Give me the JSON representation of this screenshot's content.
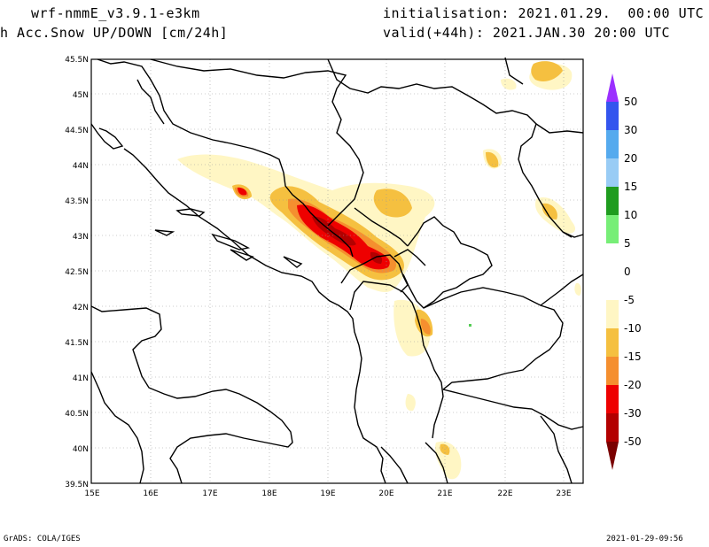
{
  "header": {
    "model": "wrf-nmmE_v3.9.1-e3km",
    "field": "h Acc.Snow UP/DOWN [cm/24h]",
    "init": "initialisation: 2021.01.29.  00:00 UTC",
    "valid": "valid(+44h): 2021.JAN.30 20:00 UTC"
  },
  "footer": {
    "credit": "GrADS: COLA/IGES",
    "timestamp": "2021-01-29-09:56"
  },
  "map": {
    "lat_labels": [
      "45.5N",
      "45N",
      "44.5N",
      "44N",
      "43.5N",
      "43N",
      "42.5N",
      "42N",
      "41.5N",
      "41N",
      "40.5N",
      "40N",
      "39.5N"
    ],
    "lon_labels": [
      "15E",
      "16E",
      "17E",
      "18E",
      "19E",
      "20E",
      "21E",
      "22E",
      "23E"
    ],
    "lat_values": [
      45.5,
      45,
      44.5,
      44,
      43.5,
      43,
      42.5,
      42,
      41.5,
      41,
      40.5,
      40,
      39.5
    ],
    "lon_values": [
      15,
      16,
      17,
      18,
      19,
      20,
      21,
      22,
      23
    ]
  },
  "legend": {
    "labels": [
      "50",
      "30",
      "20",
      "15",
      "10",
      "5",
      "0",
      "-5",
      "-10",
      "-15",
      "-20",
      "-30",
      "-50"
    ],
    "colors": [
      "#9b30ff",
      "#3355ee",
      "#55aaee",
      "#99ccf5",
      "#1f9c1f",
      "#77ee77",
      "#ffffff",
      "#ffffff",
      "#fff6c4",
      "#f5c040",
      "#f58f2f",
      "#ee0000",
      "#b30000",
      "#7a0000"
    ]
  }
}
